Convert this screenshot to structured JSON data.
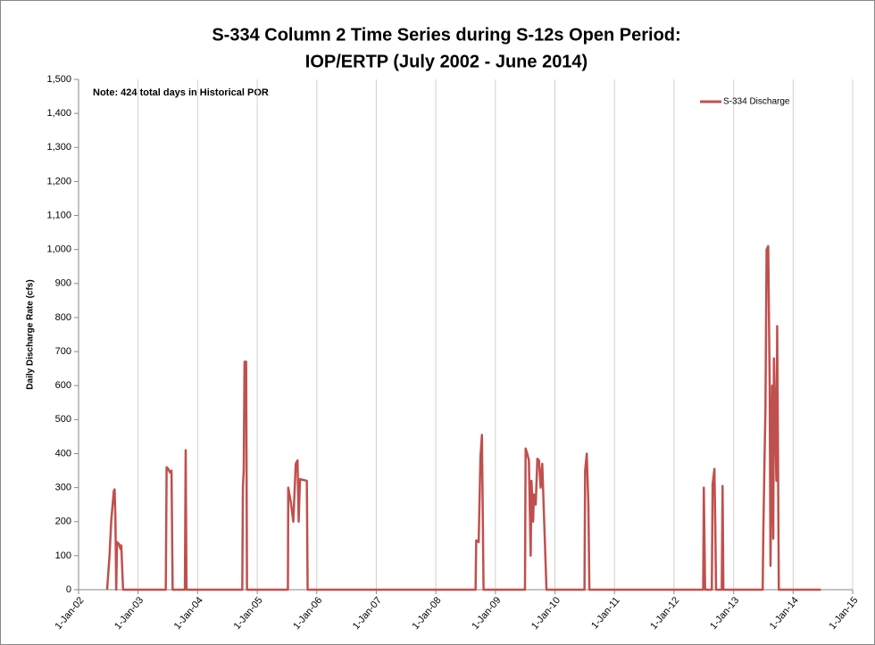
{
  "chart_data": {
    "type": "line",
    "title": [
      "S-334 Column 2 Time Series during S-12s Open Period:",
      "IOP/ERTP (July 2002 - June 2014)"
    ],
    "ylabel": "Daily Discharge Rate (cfs)",
    "annotation": "Note: 424 total days in Historical POR",
    "legend": "upper right",
    "grid": "x",
    "xlim": [
      "2002-01-01",
      "2015-01-01"
    ],
    "xticks": [
      {
        "value": "2002-01-01",
        "label": "1-Jan-02"
      },
      {
        "value": "2003-01-01",
        "label": "1-Jan-03"
      },
      {
        "value": "2004-01-01",
        "label": "1-Jan-04"
      },
      {
        "value": "2005-01-01",
        "label": "1-Jan-05"
      },
      {
        "value": "2006-01-01",
        "label": "1-Jan-06"
      },
      {
        "value": "2007-01-01",
        "label": "1-Jan-07"
      },
      {
        "value": "2008-01-01",
        "label": "1-Jan-08"
      },
      {
        "value": "2009-01-01",
        "label": "1-Jan-09"
      },
      {
        "value": "2010-01-01",
        "label": "1-Jan-10"
      },
      {
        "value": "2011-01-01",
        "label": "1-Jan-11"
      },
      {
        "value": "2012-01-01",
        "label": "1-Jan-12"
      },
      {
        "value": "2013-01-01",
        "label": "1-Jan-13"
      },
      {
        "value": "2014-01-01",
        "label": "1-Jan-14"
      },
      {
        "value": "2015-01-01",
        "label": "1-Jan-15"
      }
    ],
    "ylim": [
      0,
      1500
    ],
    "yticks": [
      0,
      100,
      200,
      300,
      400,
      500,
      600,
      700,
      800,
      900,
      {
        "value": 1000,
        "label": "1,000"
      },
      {
        "value": 1100,
        "label": "1,100"
      },
      {
        "value": 1200,
        "label": "1,200"
      },
      {
        "value": 1300,
        "label": "1,300"
      },
      {
        "value": 1400,
        "label": "1,400"
      },
      {
        "value": 1500,
        "label": "1,500"
      }
    ],
    "x": [
      "2002-06-25",
      "2002-07-10",
      "2002-07-20",
      "2002-08-05",
      "2002-08-10",
      "2002-08-15",
      "2002-08-20",
      "2002-08-25",
      "2002-09-05",
      "2002-09-15",
      "2002-09-20",
      "2002-10-01",
      "2003-06-20",
      "2003-06-25",
      "2003-07-05",
      "2003-07-15",
      "2003-07-25",
      "2003-08-01",
      "2003-10-15",
      "2003-10-20",
      "2003-10-25",
      "2004-10-01",
      "2004-10-05",
      "2004-10-10",
      "2004-10-15",
      "2004-10-25",
      "2004-10-30",
      "2005-07-08",
      "2005-07-10",
      "2005-07-25",
      "2005-08-10",
      "2005-08-25",
      "2005-09-05",
      "2005-09-12",
      "2005-09-20",
      "2005-11-01",
      "2005-11-06",
      "2008-09-01",
      "2008-09-05",
      "2008-09-20",
      "2008-10-01",
      "2008-10-10",
      "2008-10-20",
      "2009-07-01",
      "2009-07-05",
      "2009-07-15",
      "2009-07-25",
      "2009-08-05",
      "2009-08-10",
      "2009-08-20",
      "2009-08-25",
      "2009-09-05",
      "2009-09-15",
      "2009-09-25",
      "2009-10-05",
      "2009-10-15",
      "2009-11-10",
      "2010-07-01",
      "2010-07-05",
      "2010-07-15",
      "2010-07-25",
      "2010-07-31",
      "2012-06-28",
      "2012-07-02",
      "2012-07-10",
      "2012-08-20",
      "2012-08-25",
      "2012-09-05",
      "2012-09-10",
      "2012-09-15",
      "2012-10-20",
      "2012-10-25",
      "2012-10-30",
      "2013-06-28",
      "2013-07-02",
      "2013-07-10",
      "2013-07-15",
      "2013-07-22",
      "2013-08-01",
      "2013-08-10",
      "2013-08-15",
      "2013-08-25",
      "2013-09-01",
      "2013-09-05",
      "2013-09-10",
      "2013-09-20",
      "2013-09-25",
      "2013-10-05",
      "2014-06-20"
    ],
    "series": [
      {
        "name": "S-334 Discharge",
        "color": "#c0504d",
        "values": [
          0,
          100,
          200,
          290,
          295,
          210,
          0,
          140,
          135,
          120,
          130,
          0,
          0,
          360,
          355,
          345,
          350,
          0,
          0,
          410,
          0,
          0,
          300,
          350,
          670,
          670,
          0,
          0,
          300,
          260,
          200,
          370,
          380,
          200,
          325,
          320,
          0,
          0,
          145,
          140,
          390,
          455,
          0,
          0,
          415,
          400,
          380,
          100,
          320,
          200,
          280,
          250,
          385,
          380,
          300,
          370,
          0,
          0,
          350,
          400,
          250,
          0,
          0,
          300,
          0,
          0,
          310,
          355,
          200,
          0,
          0,
          305,
          0,
          0,
          170,
          400,
          530,
          1000,
          1010,
          600,
          70,
          600,
          150,
          680,
          570,
          320,
          775,
          0,
          0
        ]
      }
    ]
  }
}
